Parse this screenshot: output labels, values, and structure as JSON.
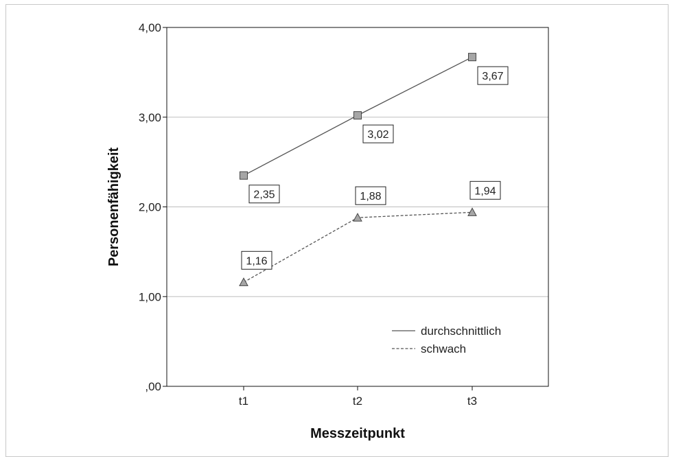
{
  "chart_data": {
    "type": "line",
    "xlabel": "Messzeitpunkt",
    "ylabel": "Personenfähigkeit",
    "categories": [
      "t1",
      "t2",
      "t3"
    ],
    "ylim": [
      0,
      4
    ],
    "yticks": [
      0,
      1,
      2,
      3,
      4
    ],
    "ytick_labels": [
      ",00",
      "1,00",
      "2,00",
      "3,00",
      "4,00"
    ],
    "grid": "horizontal",
    "legend_position": "bottom-right inside",
    "series": [
      {
        "name": "durchschnittlich",
        "values": [
          2.35,
          3.02,
          3.67
        ],
        "labels": [
          "2,35",
          "3,02",
          "3,67"
        ],
        "line_style": "solid",
        "marker": "square",
        "color": "#555555",
        "marker_color": "#a6a6a6"
      },
      {
        "name": "schwach",
        "values": [
          1.16,
          1.88,
          1.94
        ],
        "labels": [
          "1,16",
          "1,88",
          "1,94"
        ],
        "line_style": "dashed",
        "marker": "triangle",
        "color": "#555555",
        "marker_color": "#a6a6a6"
      }
    ]
  }
}
